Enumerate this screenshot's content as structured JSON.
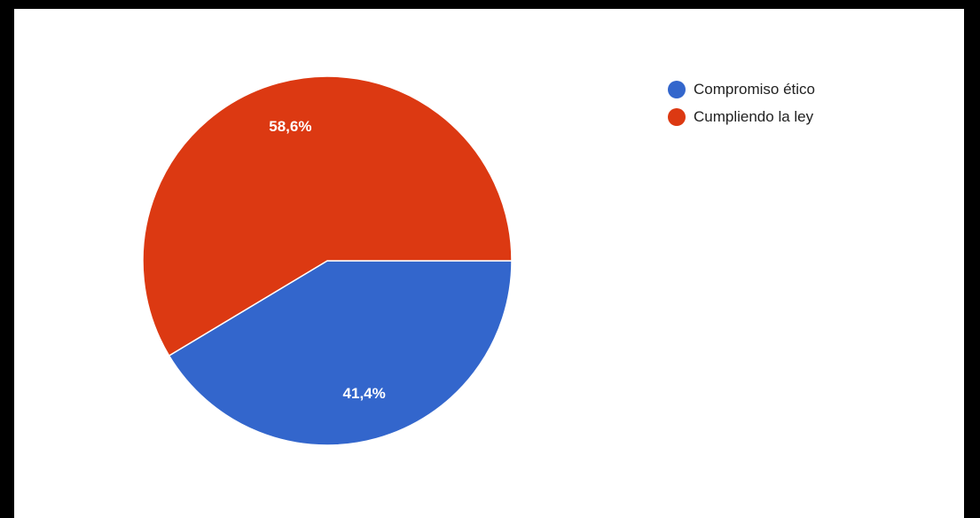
{
  "chart_data": {
    "type": "pie",
    "title": "",
    "legend_position": "right",
    "slices": [
      {
        "label": "Compromiso ético",
        "value": 41.4,
        "display": "41,4%",
        "color": "#3366cc"
      },
      {
        "label": "Cumpliendo la ley",
        "value": 58.6,
        "display": "58,6%",
        "color": "#dc3912"
      }
    ]
  }
}
